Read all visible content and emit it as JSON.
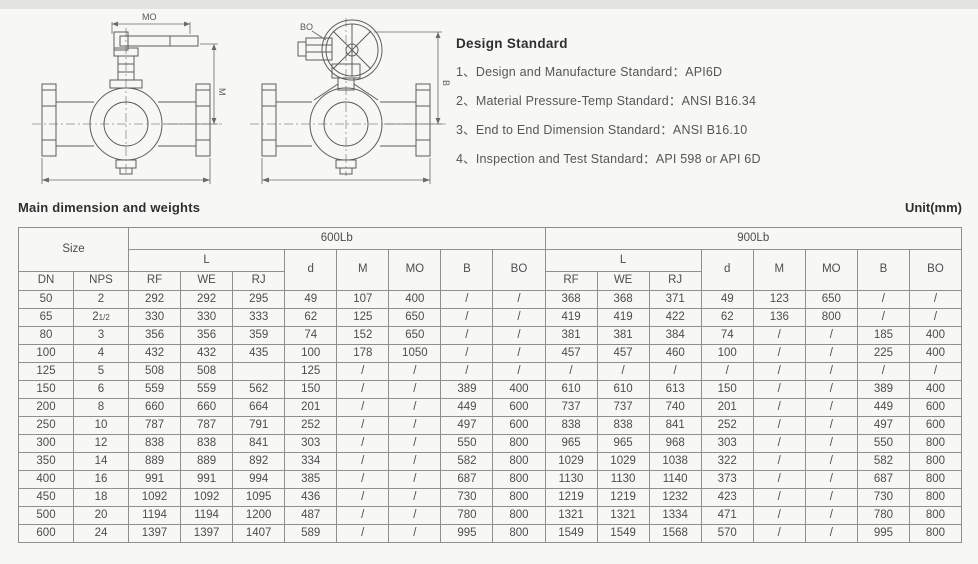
{
  "design_standard": {
    "title": "Design Standard",
    "items": [
      "1、Design and Manufacture Standard：API6D",
      "2、Material Pressure-Temp Standard：ANSI B16.34",
      "3、End to End Dimension Standard：ANSI B16.10",
      "4、Inspection and Test Standard：API 598 or API 6D"
    ]
  },
  "drawings": {
    "lever_valve": {
      "top_dim": "MO",
      "side_dim": "M"
    },
    "gear_valve": {
      "top_dim": "BO",
      "side_dim": "B"
    }
  },
  "table": {
    "title": "Main dimension and weights",
    "unit_label": "Unit(mm)",
    "header": {
      "size": "Size",
      "dn": "DN",
      "nps": "NPS",
      "g600": "600Lb",
      "g900": "900Lb",
      "l": "L",
      "rf": "RF",
      "we": "WE",
      "rj": "RJ",
      "d": "d",
      "m": "M",
      "mo": "MO",
      "b": "B",
      "bo": "BO"
    },
    "rows": [
      {
        "dn": "50",
        "nps": "2",
        "c600": [
          "292",
          "292",
          "295",
          "49",
          "107",
          "400",
          "/",
          "/"
        ],
        "c900": [
          "368",
          "368",
          "371",
          "49",
          "123",
          "650",
          "/",
          "/"
        ]
      },
      {
        "dn": "65",
        "nps": "21/2",
        "c600": [
          "330",
          "330",
          "333",
          "62",
          "125",
          "650",
          "/",
          "/"
        ],
        "c900": [
          "419",
          "419",
          "422",
          "62",
          "136",
          "800",
          "/",
          "/"
        ]
      },
      {
        "dn": "80",
        "nps": "3",
        "c600": [
          "356",
          "356",
          "359",
          "74",
          "152",
          "650",
          "/",
          "/"
        ],
        "c900": [
          "381",
          "381",
          "384",
          "74",
          "/",
          "/",
          "185",
          "400"
        ]
      },
      {
        "dn": "100",
        "nps": "4",
        "c600": [
          "432",
          "432",
          "435",
          "100",
          "178",
          "1050",
          "/",
          "/"
        ],
        "c900": [
          "457",
          "457",
          "460",
          "100",
          "/",
          "/",
          "225",
          "400"
        ]
      },
      {
        "dn": "125",
        "nps": "5",
        "c600": [
          "508",
          "508",
          "",
          "125",
          "/",
          "/",
          "/",
          "/"
        ],
        "c900": [
          "/",
          "/",
          "/",
          "/",
          "/",
          "/",
          "/",
          "/"
        ]
      },
      {
        "dn": "150",
        "nps": "6",
        "c600": [
          "559",
          "559",
          "562",
          "150",
          "/",
          "/",
          "389",
          "400"
        ],
        "c900": [
          "610",
          "610",
          "613",
          "150",
          "/",
          "/",
          "389",
          "400"
        ]
      },
      {
        "dn": "200",
        "nps": "8",
        "c600": [
          "660",
          "660",
          "664",
          "201",
          "/",
          "/",
          "449",
          "600"
        ],
        "c900": [
          "737",
          "737",
          "740",
          "201",
          "/",
          "/",
          "449",
          "600"
        ]
      },
      {
        "dn": "250",
        "nps": "10",
        "c600": [
          "787",
          "787",
          "791",
          "252",
          "/",
          "/",
          "497",
          "600"
        ],
        "c900": [
          "838",
          "838",
          "841",
          "252",
          "/",
          "/",
          "497",
          "600"
        ]
      },
      {
        "dn": "300",
        "nps": "12",
        "c600": [
          "838",
          "838",
          "841",
          "303",
          "/",
          "/",
          "550",
          "800"
        ],
        "c900": [
          "965",
          "965",
          "968",
          "303",
          "/",
          "/",
          "550",
          "800"
        ]
      },
      {
        "dn": "350",
        "nps": "14",
        "c600": [
          "889",
          "889",
          "892",
          "334",
          "/",
          "/",
          "582",
          "800"
        ],
        "c900": [
          "1029",
          "1029",
          "1038",
          "322",
          "/",
          "/",
          "582",
          "800"
        ]
      },
      {
        "dn": "400",
        "nps": "16",
        "c600": [
          "991",
          "991",
          "994",
          "385",
          "/",
          "/",
          "687",
          "800"
        ],
        "c900": [
          "1130",
          "1130",
          "1140",
          "373",
          "/",
          "/",
          "687",
          "800"
        ]
      },
      {
        "dn": "450",
        "nps": "18",
        "c600": [
          "1092",
          "1092",
          "1095",
          "436",
          "/",
          "/",
          "730",
          "800"
        ],
        "c900": [
          "1219",
          "1219",
          "1232",
          "423",
          "/",
          "/",
          "730",
          "800"
        ]
      },
      {
        "dn": "500",
        "nps": "20",
        "c600": [
          "1194",
          "1194",
          "1200",
          "487",
          "/",
          "/",
          "780",
          "800"
        ],
        "c900": [
          "1321",
          "1321",
          "1334",
          "471",
          "/",
          "/",
          "780",
          "800"
        ]
      },
      {
        "dn": "600",
        "nps": "24",
        "c600": [
          "1397",
          "1397",
          "1407",
          "589",
          "/",
          "/",
          "995",
          "800"
        ],
        "c900": [
          "1549",
          "1549",
          "1568",
          "570",
          "/",
          "/",
          "995",
          "800"
        ]
      }
    ]
  }
}
